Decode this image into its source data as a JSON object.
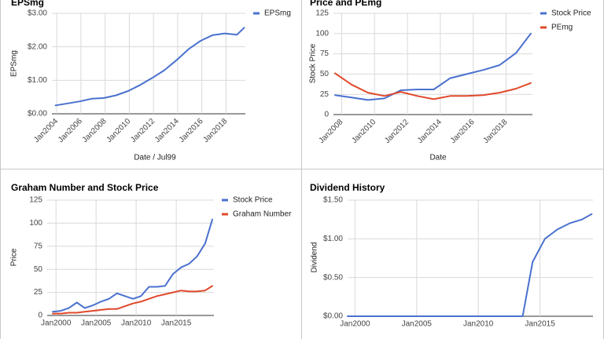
{
  "colors": {
    "blue": "#4a71cf",
    "red": "#e0492b",
    "grid": "#d9d9d9",
    "axis": "#333333",
    "tick": "#444444"
  },
  "chart_data": [
    {
      "type": "line",
      "title": "EPSmg",
      "xlabel": "Date / Jul99",
      "ylabel": "EPSmg",
      "ylim": [
        0,
        3
      ],
      "xlim": [
        2003.6,
        2019.6
      ],
      "yticks": [
        0,
        1,
        2,
        3
      ],
      "ytick_labels": [
        "$0.00",
        "$1.00",
        "$2.00",
        "$3.00"
      ],
      "xticks": [
        2004,
        2006,
        2008,
        2010,
        2012,
        2014,
        2016,
        2018
      ],
      "xtick_labels": [
        "Jan2004",
        "Jan2006",
        "Jan2008",
        "Jan2010",
        "Jan2012",
        "Jan2014",
        "Jan2016",
        "Jan2018"
      ],
      "x_rotated": true,
      "legend_position": "right",
      "series": [
        {
          "name": "EPSmg",
          "color": "#4a71cf",
          "x": [
            2003.9,
            2004.9,
            2005.9,
            2006.9,
            2007.9,
            2008.9,
            2009.9,
            2010.9,
            2011.9,
            2012.9,
            2013.9,
            2014.9,
            2015.9,
            2016.9,
            2017.9,
            2018.9,
            2019.5
          ],
          "values": [
            0.25,
            0.31,
            0.37,
            0.45,
            0.47,
            0.55,
            0.68,
            0.86,
            1.07,
            1.3,
            1.6,
            1.93,
            2.18,
            2.35,
            2.4,
            2.36,
            2.57
          ]
        }
      ]
    },
    {
      "type": "line",
      "title": "Price and PEmg",
      "xlabel": "Date",
      "ylabel": "Stock Price",
      "ylim": [
        0,
        125
      ],
      "xlim": [
        2007.5,
        2019.6
      ],
      "yticks": [
        0,
        25,
        50,
        75,
        100,
        125
      ],
      "ytick_labels": [
        "0",
        "25",
        "50",
        "75",
        "100",
        "125"
      ],
      "xticks": [
        2008,
        2010,
        2012,
        2014,
        2016,
        2018
      ],
      "xtick_labels": [
        "Jan2008",
        "Jan2010",
        "Jan2012",
        "Jan2014",
        "Jan2016",
        "Jan2018"
      ],
      "x_rotated": true,
      "legend_position": "right",
      "series": [
        {
          "name": "Stock Price",
          "color": "#4a71cf",
          "x": [
            2007.6,
            2008.6,
            2009.6,
            2010.6,
            2011.6,
            2012.6,
            2013.6,
            2014.6,
            2015.6,
            2016.6,
            2017.6,
            2018.6,
            2019.5
          ],
          "values": [
            24,
            21,
            18,
            20,
            30,
            31,
            31,
            45,
            50,
            55,
            61,
            76,
            100
          ]
        },
        {
          "name": "PEmg",
          "color": "#e0492b",
          "x": [
            2007.6,
            2008.6,
            2009.6,
            2010.6,
            2011.6,
            2012.6,
            2013.6,
            2014.6,
            2015.6,
            2016.6,
            2017.6,
            2018.6,
            2019.5
          ],
          "values": [
            51,
            37,
            27,
            23,
            28,
            23,
            19,
            23,
            23,
            24,
            27,
            32,
            39
          ]
        }
      ]
    },
    {
      "type": "line",
      "title": "Graham Number and Stock Price",
      "xlabel": "",
      "ylabel": "Price",
      "ylim": [
        0,
        125
      ],
      "xlim": [
        1998.9,
        2019.7
      ],
      "yticks": [
        0,
        25,
        50,
        75,
        100,
        125
      ],
      "ytick_labels": [
        "0",
        "25",
        "50",
        "75",
        "100",
        "125"
      ],
      "xticks": [
        2000,
        2005,
        2010,
        2015
      ],
      "xtick_labels": [
        "Jan2000",
        "Jan2005",
        "Jan2010",
        "Jan2015"
      ],
      "x_rotated": false,
      "legend_position": "right",
      "series": [
        {
          "name": "Stock Price",
          "color": "#4a71cf",
          "x": [
            1999.6,
            2000.6,
            2001.6,
            2002.6,
            2003.6,
            2004.6,
            2005.6,
            2006.6,
            2007.6,
            2008.6,
            2009.6,
            2010.6,
            2011.6,
            2012.6,
            2013.6,
            2014.6,
            2015.6,
            2016.6,
            2017.6,
            2018.6,
            2019.5
          ],
          "values": [
            4,
            5,
            8,
            14,
            8,
            11,
            15,
            18,
            24,
            21,
            18,
            21,
            31,
            31,
            32,
            45,
            52,
            56,
            64,
            78,
            104
          ]
        },
        {
          "name": "Graham Number",
          "color": "#e0492b",
          "x": [
            1999.6,
            2000.6,
            2001.6,
            2002.6,
            2003.6,
            2004.6,
            2005.6,
            2006.6,
            2007.6,
            2008.6,
            2009.6,
            2010.6,
            2011.6,
            2012.6,
            2013.6,
            2014.6,
            2015.6,
            2016.6,
            2017.6,
            2018.6,
            2019.5
          ],
          "values": [
            2,
            2,
            3,
            3,
            4,
            5,
            6,
            7,
            7,
            10,
            13,
            15,
            18,
            21,
            23,
            25,
            27,
            26,
            26,
            27,
            32
          ]
        }
      ]
    },
    {
      "type": "line",
      "title": "Dividend History",
      "xlabel": "",
      "ylabel": "Dividend",
      "ylim": [
        0,
        1.5
      ],
      "xlim": [
        1999.4,
        2019.3
      ],
      "yticks": [
        0,
        0.5,
        1.0,
        1.5
      ],
      "ytick_labels": [
        "$0.00",
        "$0.50",
        "$1.00",
        "$1.50"
      ],
      "xticks": [
        2000,
        2005,
        2010,
        2015
      ],
      "xtick_labels": [
        "Jan2000",
        "Jan2005",
        "Jan2010",
        "Jan2015"
      ],
      "x_rotated": false,
      "legend_position": "none",
      "series": [
        {
          "name": "",
          "color": "#4a71cf",
          "x": [
            1999.4,
            2000.4,
            2001.4,
            2002.4,
            2003.4,
            2004.4,
            2005.4,
            2006.4,
            2007.4,
            2008.4,
            2009.4,
            2010.4,
            2011.4,
            2012.4,
            2013.4,
            2013.6,
            2014.4,
            2015.4,
            2016.4,
            2017.4,
            2018.4,
            2019.2
          ],
          "values": [
            0,
            0,
            0,
            0,
            0,
            0,
            0,
            0,
            0,
            0,
            0,
            0,
            0,
            0,
            0,
            0.0,
            0.7,
            1.0,
            1.12,
            1.2,
            1.25,
            1.32
          ]
        }
      ]
    }
  ]
}
